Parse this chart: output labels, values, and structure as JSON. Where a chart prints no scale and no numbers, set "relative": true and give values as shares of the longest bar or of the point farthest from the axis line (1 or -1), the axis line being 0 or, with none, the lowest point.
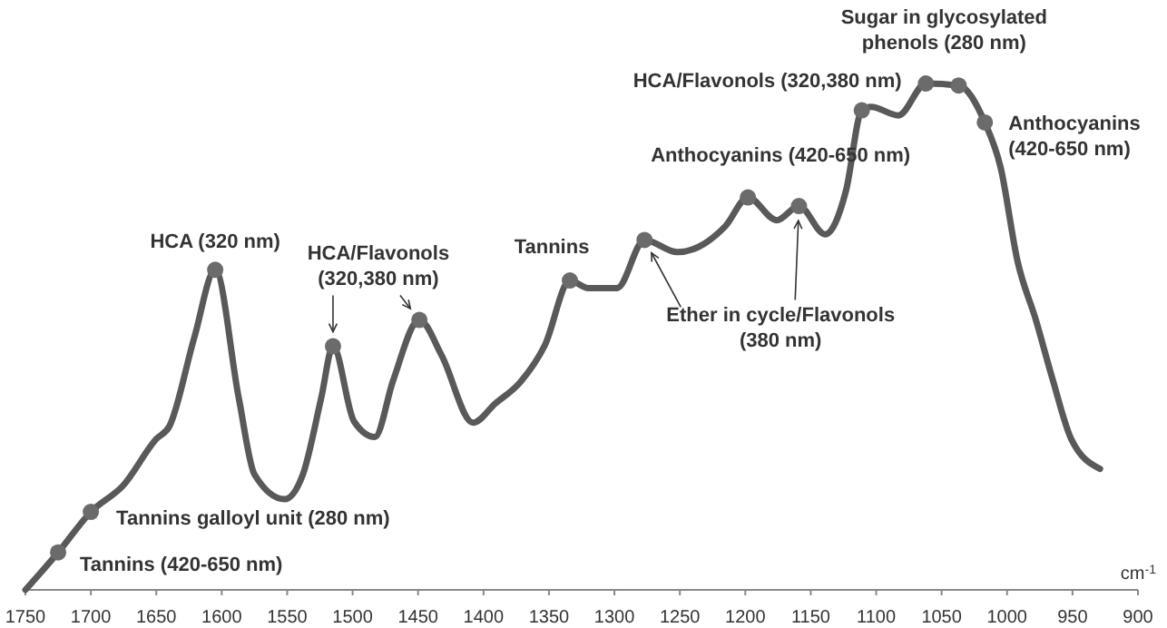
{
  "chart_data": {
    "type": "line",
    "relative": true,
    "xlabel": "cm$^{-1}$",
    "xlim": [
      1750,
      900
    ],
    "xticks": [
      1750,
      1700,
      1650,
      1600,
      1550,
      1500,
      1450,
      1400,
      1350,
      1300,
      1250,
      1200,
      1150,
      1100,
      1050,
      1000,
      950,
      900
    ],
    "grid": false,
    "series": [
      {
        "color": "#595959",
        "marker": "none",
        "x": [
          1750,
          1725,
          1700,
          1675,
          1650,
          1640,
          1621,
          1605,
          1587,
          1575,
          1552,
          1538,
          1524,
          1515,
          1499,
          1483,
          1469,
          1449,
          1432,
          1408,
          1391,
          1372,
          1353,
          1334,
          1320,
          1298,
          1277,
          1252,
          1236,
          1215,
          1198,
          1176,
          1159,
          1139,
          1123,
          1111,
          1104,
          1083,
          1062,
          1037,
          1017,
          1005,
          992,
          978,
          965,
          951,
          929
        ],
        "values": [
          0,
          0.074,
          0.154,
          0.207,
          0.298,
          0.323,
          0.498,
          0.632,
          0.379,
          0.228,
          0.179,
          0.228,
          0.379,
          0.481,
          0.333,
          0.302,
          0.414,
          0.533,
          0.463,
          0.33,
          0.368,
          0.41,
          0.484,
          0.611,
          0.596,
          0.596,
          0.691,
          0.667,
          0.677,
          0.719,
          0.775,
          0.73,
          0.758,
          0.702,
          0.789,
          0.947,
          0.954,
          0.937,
          1.0,
          0.996,
          0.923,
          0.835,
          0.649,
          0.533,
          0.414,
          0.298,
          0.239
        ]
      },
      {
        "type": "scatter",
        "color": "#6b6b6b",
        "marker": "circle",
        "x": [
          1725,
          1700,
          1605,
          1515,
          1449,
          1334,
          1277,
          1198,
          1159,
          1111,
          1062,
          1037,
          1017
        ],
        "values": [
          0.074,
          0.154,
          0.632,
          0.481,
          0.533,
          0.611,
          0.691,
          0.775,
          0.758,
          0.947,
          1.0,
          0.996,
          0.923
        ]
      }
    ],
    "annotations": [
      {
        "text": "Tannins (420-650 nm)",
        "x": 1725,
        "y": 0.074
      },
      {
        "text": "Tannins galloyl unit (280 nm)",
        "x": 1700,
        "y": 0.154
      },
      {
        "text": "HCA (320 nm)",
        "x": 1605,
        "y": 0.632
      },
      {
        "text": "HCA/Flavonols\n(320,380 nm)",
        "x": 1515,
        "y": 0.481
      },
      {
        "text": "Tannins",
        "x": 1334,
        "y": 0.611
      },
      {
        "text": "Anthocyanins (420-650 nm)",
        "x": 1198,
        "y": 0.775
      },
      {
        "text": "Ether in cycle/Flavonols\n(380 nm)",
        "x": 1277,
        "y": 0.691
      },
      {
        "text": "HCA/Flavonols (320,380 nm)",
        "x": 1111,
        "y": 0.947
      },
      {
        "text": "Sugar in glycosylated\nphenols (280 nm)",
        "x": 1062,
        "y": 1.0
      },
      {
        "text": "Anthocyanins\n(420-650 nm)",
        "x": 1017,
        "y": 0.923
      }
    ]
  }
}
